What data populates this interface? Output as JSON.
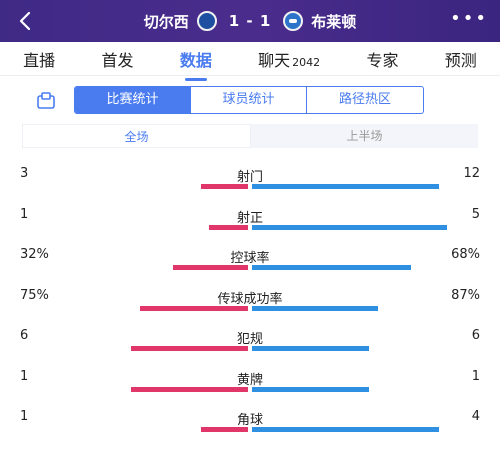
{
  "header": {
    "home_team": "切尔西",
    "away_team": "布莱顿",
    "score": "1 - 1",
    "more_label": "•••",
    "colors": {
      "header_bg": "#45298a"
    }
  },
  "tabs": [
    {
      "label": "直播"
    },
    {
      "label": "首发"
    },
    {
      "label": "数据",
      "active": true
    },
    {
      "label": "聊天",
      "count": "2042"
    },
    {
      "label": "专家"
    },
    {
      "label": "预测"
    }
  ],
  "segments": [
    {
      "label": "比赛统计",
      "active": true
    },
    {
      "label": "球员统计"
    },
    {
      "label": "路径热区"
    }
  ],
  "period": [
    {
      "label": "全场",
      "active": true
    },
    {
      "label": "上半场"
    }
  ],
  "colors": {
    "home": "#e0366a",
    "away": "#2f8fe0",
    "accent": "#4a7cf0"
  },
  "stats": [
    {
      "label": "射门",
      "home": "3",
      "away": "12",
      "home_share": 0.2,
      "away_share": 0.8
    },
    {
      "label": "射正",
      "home": "1",
      "away": "5",
      "home_share": 0.167,
      "away_share": 0.833
    },
    {
      "label": "控球率",
      "home": "32%",
      "away": "68%",
      "home_share": 0.32,
      "away_share": 0.68
    },
    {
      "label": "传球成功率",
      "home": "75%",
      "away": "87%",
      "home_share": 0.46,
      "away_share": 0.54
    },
    {
      "label": "犯规",
      "home": "6",
      "away": "6",
      "home_share": 0.5,
      "away_share": 0.5
    },
    {
      "label": "黄牌",
      "home": "1",
      "away": "1",
      "home_share": 0.5,
      "away_share": 0.5
    },
    {
      "label": "角球",
      "home": "1",
      "away": "4",
      "home_share": 0.2,
      "away_share": 0.8
    }
  ]
}
